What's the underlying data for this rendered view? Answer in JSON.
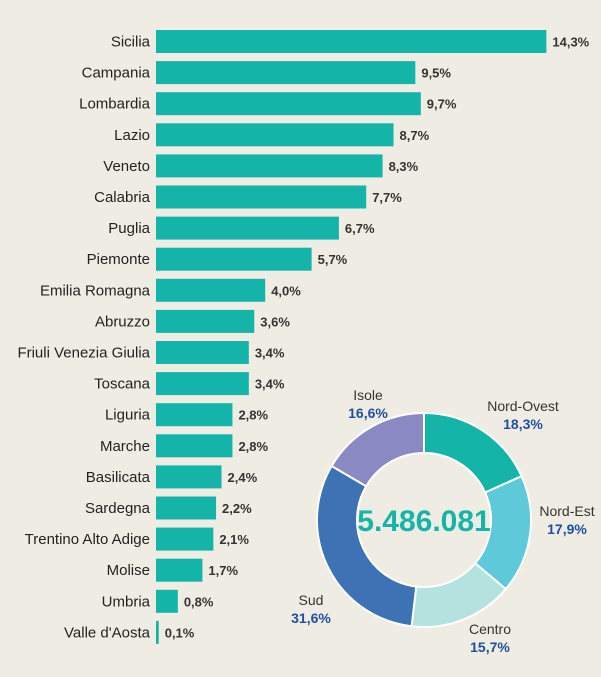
{
  "chart_data": [
    {
      "type": "bar",
      "orientation": "horizontal",
      "categories": [
        "Sicilia",
        "Campania",
        "Lombardia",
        "Lazio",
        "Veneto",
        "Calabria",
        "Puglia",
        "Piemonte",
        "Emilia Romagna",
        "Abruzzo",
        "Friuli Venezia Giulia",
        "Toscana",
        "Liguria",
        "Marche",
        "Basilicata",
        "Sardegna",
        "Trentino Alto Adige",
        "Molise",
        "Umbria",
        "Valle d'Aosta"
      ],
      "values": [
        14.3,
        9.5,
        9.7,
        8.7,
        8.3,
        7.7,
        6.7,
        5.7,
        4.0,
        3.6,
        3.4,
        3.4,
        2.8,
        2.8,
        2.4,
        2.2,
        2.1,
        1.7,
        0.8,
        0.1
      ],
      "value_labels": [
        "14,3%",
        "9,5%",
        "9,7%",
        "8,7%",
        "8,3%",
        "7,7%",
        "6,7%",
        "5,7%",
        "4,0%",
        "3,6%",
        "3,4%",
        "3,4%",
        "2,8%",
        "2,8%",
        "2,4%",
        "2,2%",
        "2,1%",
        "1,7%",
        "0,8%",
        "0,1%"
      ],
      "bar_color": "#14b5a8",
      "grid": false
    },
    {
      "type": "pie",
      "style": "donut",
      "center_label": "5.486.081",
      "slices": [
        {
          "label": "Nord-Ovest",
          "value": 18.3,
          "value_label": "18,3%",
          "color": "#14b5a8"
        },
        {
          "label": "Nord-Est",
          "value": 17.9,
          "value_label": "17,9%",
          "color": "#5ec9d8"
        },
        {
          "label": "Centro",
          "value": 15.7,
          "value_label": "15,7%",
          "color": "#b3e2df"
        },
        {
          "label": "Sud",
          "value": 31.6,
          "value_label": "31,6%",
          "color": "#3d72b5"
        },
        {
          "label": "Isole",
          "value": 16.6,
          "value_label": "16,6%",
          "color": "#8b89c4"
        }
      ]
    }
  ],
  "colors": {
    "background": "#efede3",
    "value_text": "#1f4f9c",
    "center_text": "#14b5a8"
  }
}
